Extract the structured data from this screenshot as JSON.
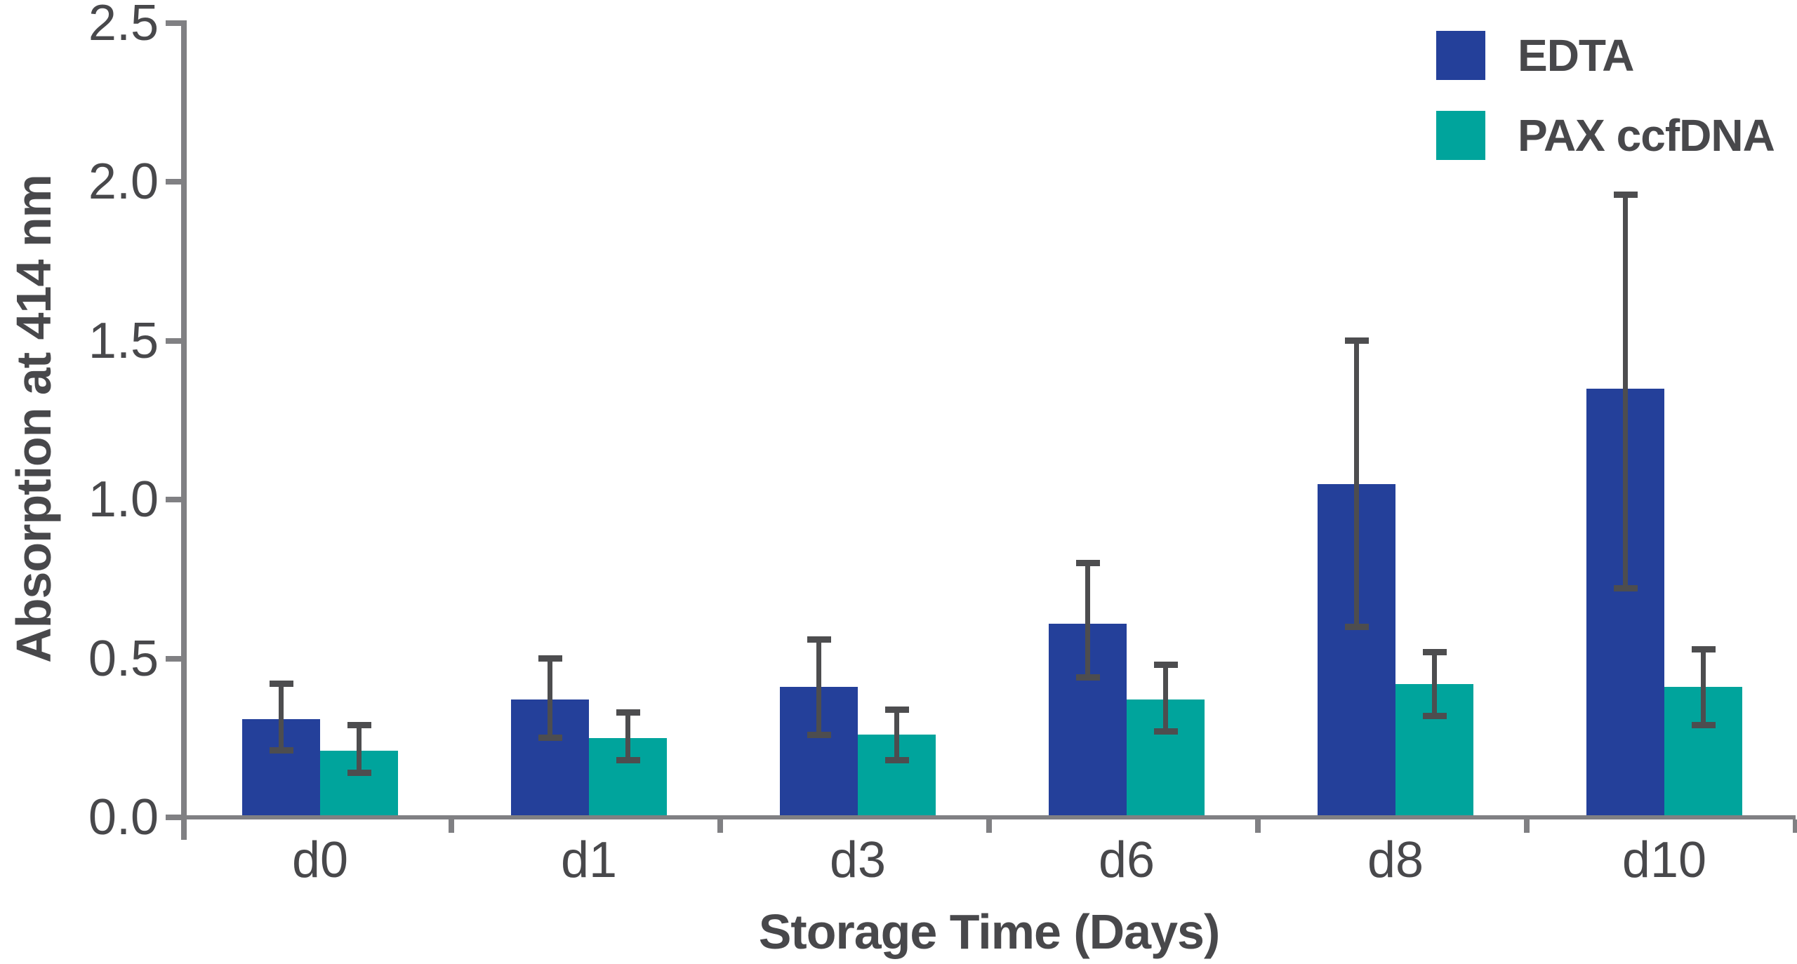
{
  "chart_data": {
    "type": "bar",
    "title": "",
    "xlabel": "Storage Time (Days)",
    "ylabel": "Absorption at 414 nm",
    "categories": [
      "d0",
      "d1",
      "d3",
      "d6",
      "d8",
      "d10"
    ],
    "series": [
      {
        "name": "EDTA",
        "color": "#24409a",
        "values": [
          0.31,
          0.37,
          0.41,
          0.61,
          1.05,
          1.35
        ],
        "error_low": [
          0.21,
          0.25,
          0.26,
          0.44,
          0.6,
          0.72
        ],
        "error_high": [
          0.42,
          0.5,
          0.56,
          0.8,
          1.5,
          1.96
        ]
      },
      {
        "name": "PAX ccfDNA",
        "color": "#00a49c",
        "values": [
          0.21,
          0.25,
          0.26,
          0.37,
          0.42,
          0.41
        ],
        "error_low": [
          0.14,
          0.18,
          0.18,
          0.27,
          0.32,
          0.29
        ],
        "error_high": [
          0.29,
          0.33,
          0.34,
          0.48,
          0.52,
          0.53
        ]
      }
    ],
    "y_ticks": [
      "0.0",
      "0.5",
      "1.0",
      "1.5",
      "2.0",
      "2.5"
    ],
    "ylim": [
      0,
      2.5
    ],
    "grid": false,
    "legend_position": "top-right",
    "error_bars": true
  },
  "colors": {
    "text": "#48484b",
    "axis": "#808083",
    "error_bar": "#4d4d4f",
    "background": "#ffffff"
  }
}
